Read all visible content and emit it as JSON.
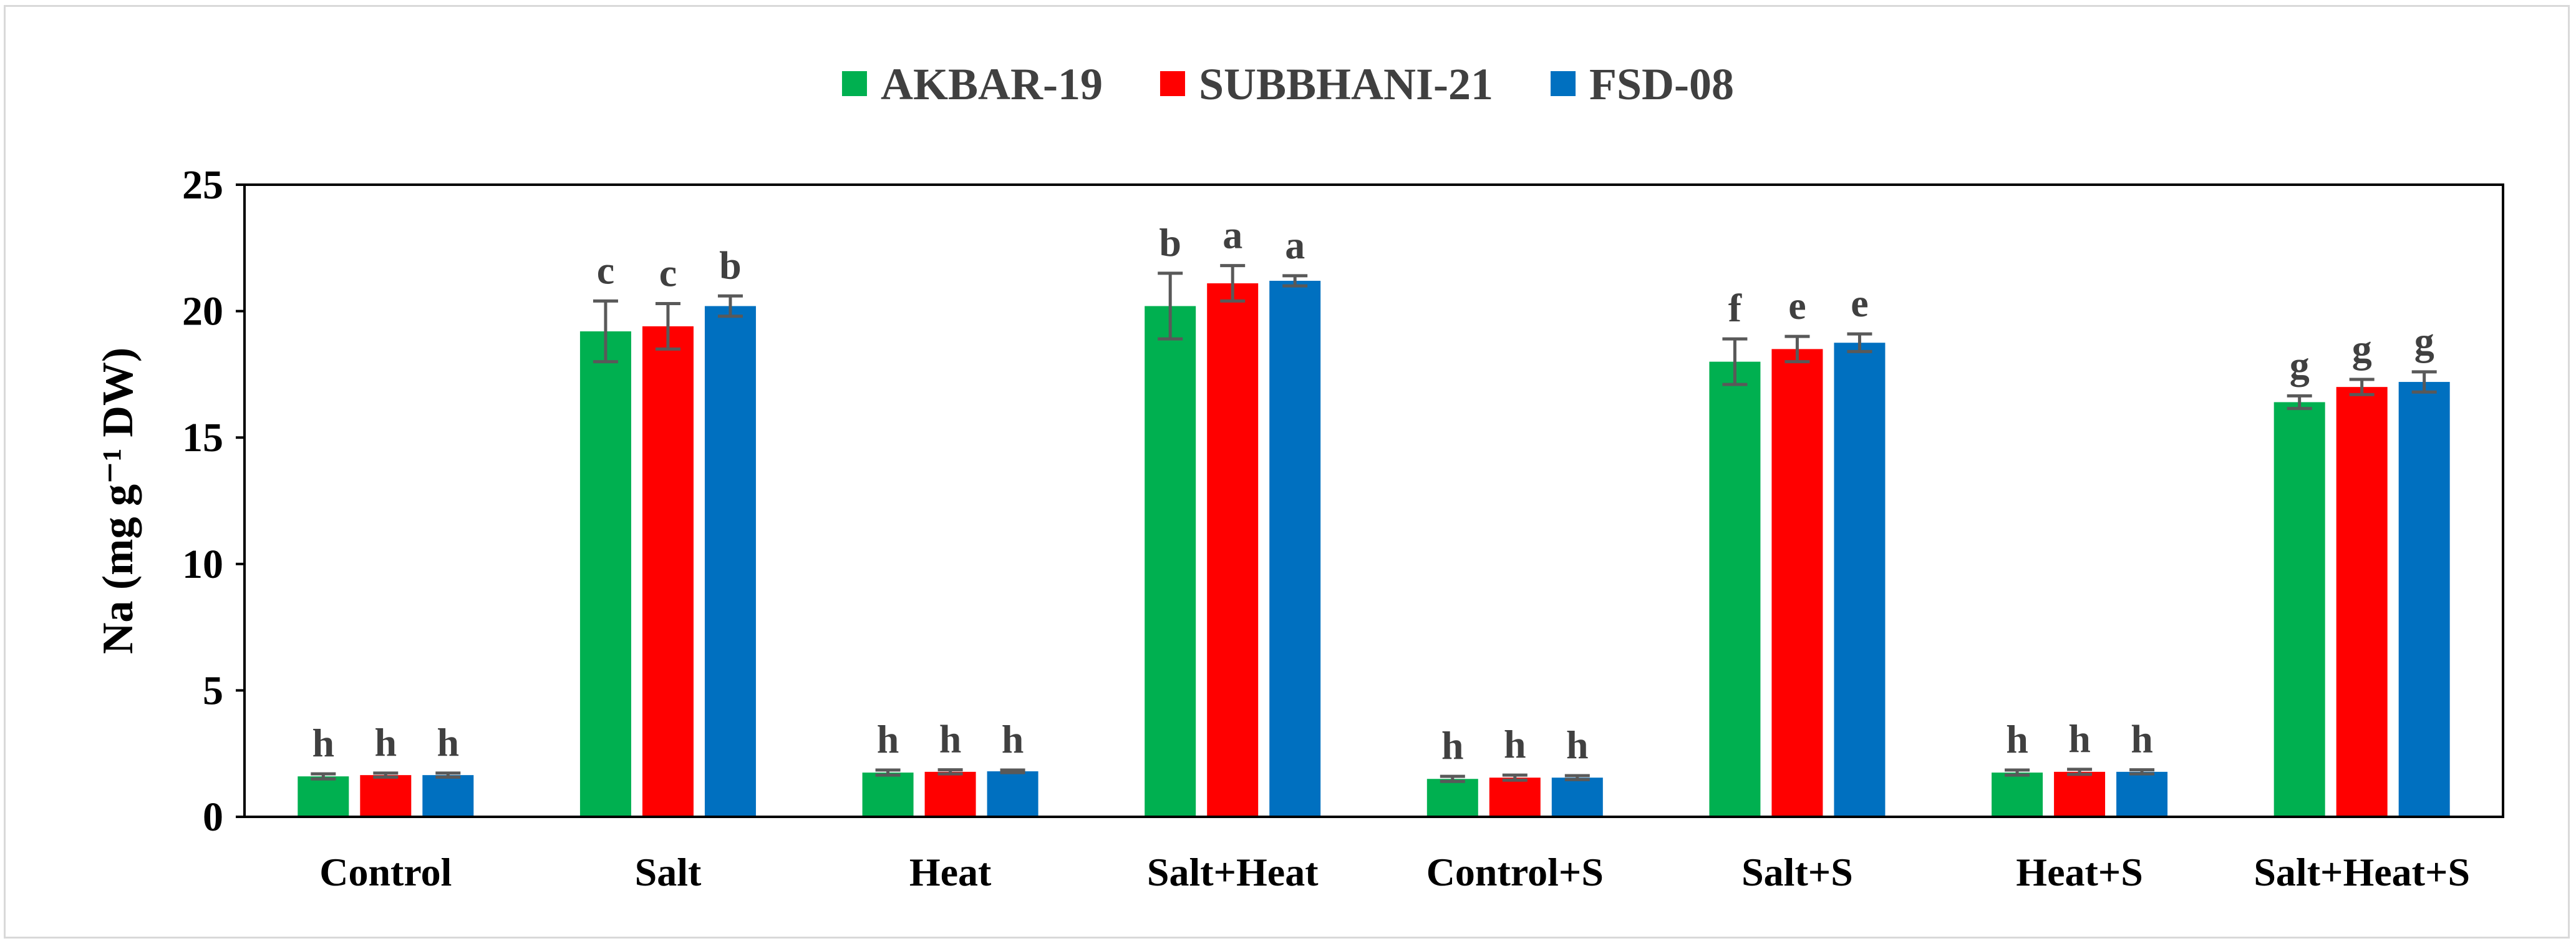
{
  "chart_data": {
    "type": "bar",
    "title": "",
    "xlabel": "",
    "ylabel": "Na (mg g⁻¹ DW)",
    "ylim": [
      0,
      25
    ],
    "yticks": [
      0,
      5,
      10,
      15,
      20,
      25
    ],
    "grid": false,
    "legend_position": "top-center",
    "categories": [
      "Control",
      "Salt",
      "Heat",
      "Salt+Heat",
      "Control+S",
      "Salt+S",
      "Heat+S",
      "Salt+Heat+S"
    ],
    "series": [
      {
        "name": "AKBAR-19",
        "color": "#00b050",
        "values": [
          1.6,
          19.2,
          1.75,
          20.2,
          1.5,
          18.0,
          1.75,
          16.4
        ],
        "errors": [
          0.1,
          1.2,
          0.1,
          1.3,
          0.1,
          0.9,
          0.1,
          0.25
        ],
        "letters": [
          "h",
          "c",
          "h",
          "b",
          "h",
          "f",
          "h",
          "g"
        ]
      },
      {
        "name": "SUBBHANI-21",
        "color": "#ff0000",
        "values": [
          1.65,
          19.4,
          1.78,
          21.1,
          1.55,
          18.5,
          1.78,
          17.0
        ],
        "errors": [
          0.08,
          0.9,
          0.08,
          0.7,
          0.1,
          0.5,
          0.1,
          0.3
        ],
        "letters": [
          "h",
          "c",
          "h",
          "a",
          "h",
          "e",
          "h",
          "g"
        ]
      },
      {
        "name": "FSD-08",
        "color": "#0070c0",
        "values": [
          1.65,
          20.2,
          1.8,
          21.2,
          1.55,
          18.75,
          1.78,
          17.2
        ],
        "errors": [
          0.08,
          0.4,
          0.05,
          0.2,
          0.08,
          0.35,
          0.08,
          0.4
        ],
        "letters": [
          "h",
          "b",
          "h",
          "a",
          "h",
          "e",
          "h",
          "g"
        ]
      }
    ],
    "error_bar_color": "#595959"
  }
}
